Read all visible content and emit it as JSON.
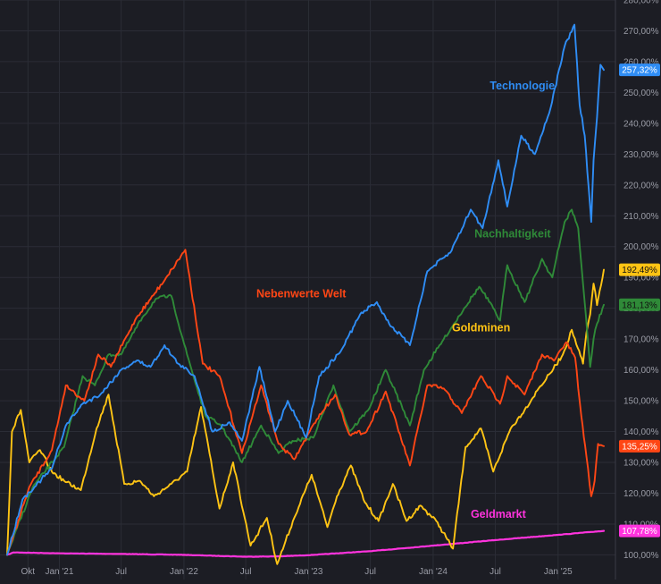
{
  "chart_data": {
    "type": "line",
    "title": "",
    "xlabel": "",
    "ylabel": "",
    "x_range": [
      "2020-08-01",
      "2025-05-15"
    ],
    "ylim": [
      92,
      280
    ],
    "y_unit": "%",
    "grid": true,
    "background": "#1c1d24",
    "grid_color": "#2b2d36",
    "x_ticks": [
      {
        "label": "Okt",
        "date": "2020-10-01"
      },
      {
        "label": "Jan '21",
        "date": "2021-01-01"
      },
      {
        "label": "Jul",
        "date": "2021-07-01"
      },
      {
        "label": "Jan '22",
        "date": "2022-01-01"
      },
      {
        "label": "Jul",
        "date": "2022-07-01"
      },
      {
        "label": "Jan '23",
        "date": "2023-01-01"
      },
      {
        "label": "Jul",
        "date": "2023-07-01"
      },
      {
        "label": "Jan '24",
        "date": "2024-01-01"
      },
      {
        "label": "Jul",
        "date": "2024-07-01"
      },
      {
        "label": "Jan '25",
        "date": "2025-01-01"
      }
    ],
    "y_ticks": [
      {
        "label": "100,00%",
        "value": 100
      },
      {
        "label": "110,00%",
        "value": 110
      },
      {
        "label": "120,00%",
        "value": 120
      },
      {
        "label": "130,00%",
        "value": 130
      },
      {
        "label": "140,00%",
        "value": 140
      },
      {
        "label": "150,00%",
        "value": 150
      },
      {
        "label": "160,00%",
        "value": 160
      },
      {
        "label": "170,00%",
        "value": 170
      },
      {
        "label": "180,00%",
        "value": 180
      },
      {
        "label": "190,00%",
        "value": 190
      },
      {
        "label": "200,00%",
        "value": 200
      },
      {
        "label": "210,00%",
        "value": 210
      },
      {
        "label": "220,00%",
        "value": 220
      },
      {
        "label": "230,00%",
        "value": 230
      },
      {
        "label": "240,00%",
        "value": 240
      },
      {
        "label": "250,00%",
        "value": 250
      },
      {
        "label": "260,00%",
        "value": 260
      },
      {
        "label": "270,00%",
        "value": 270
      },
      {
        "label": "280,00%",
        "value": 280
      }
    ],
    "series": [
      {
        "name": "Geldmarkt",
        "color": "#ff33dd",
        "last_value_label": "107,78%",
        "badge_text_color": "#ffffff",
        "label_anchor": [
          "2024-04-20",
          112
        ],
        "x": [
          "2020-08-01",
          "2020-08-20",
          "2021-01-01",
          "2021-07-01",
          "2022-01-01",
          "2022-07-01",
          "2022-10-01",
          "2023-01-01",
          "2023-07-01",
          "2024-01-01",
          "2024-07-01",
          "2025-01-01",
          "2025-05-15"
        ],
        "y": [
          100,
          100.8,
          100.5,
          100.3,
          100,
          99.4,
          99.5,
          99.9,
          101.2,
          103,
          104.8,
          106.5,
          107.78
        ]
      },
      {
        "name": "Goldminen",
        "color": "#ffc414",
        "last_value_label": "192,49%",
        "badge_text_color": "#111111",
        "label_anchor": [
          "2024-02-25",
          172.5
        ],
        "x": [
          "2020-08-01",
          "2020-08-15",
          "2020-09-10",
          "2020-10-05",
          "2020-11-05",
          "2020-12-10",
          "2021-01-15",
          "2021-03-05",
          "2021-04-20",
          "2021-05-25",
          "2021-07-10",
          "2021-08-25",
          "2021-10-05",
          "2021-11-25",
          "2022-01-10",
          "2022-02-20",
          "2022-04-15",
          "2022-05-25",
          "2022-07-15",
          "2022-09-01",
          "2022-10-01",
          "2022-11-20",
          "2023-01-10",
          "2023-02-25",
          "2023-03-25",
          "2023-05-05",
          "2023-06-15",
          "2023-07-25",
          "2023-09-05",
          "2023-10-15",
          "2023-11-25",
          "2024-01-10",
          "2024-02-28",
          "2024-04-05",
          "2024-05-20",
          "2024-06-25",
          "2024-08-15",
          "2024-09-25",
          "2024-11-05",
          "2024-12-10",
          "2025-01-15",
          "2025-02-10",
          "2025-02-28",
          "2025-03-15",
          "2025-03-25",
          "2025-04-05",
          "2025-04-15",
          "2025-04-25",
          "2025-05-15"
        ],
        "y": [
          100,
          140,
          147,
          130,
          134,
          127,
          124,
          121,
          141,
          152,
          123,
          124,
          119,
          123,
          127,
          148,
          115,
          130,
          103,
          112,
          97,
          112,
          126,
          109,
          119,
          129,
          117,
          111,
          123,
          111,
          116,
          111,
          102,
          135,
          141,
          127,
          141,
          147,
          154,
          159,
          165,
          173,
          167,
          162,
          172,
          178,
          188,
          181,
          192.49
        ]
      },
      {
        "name": "Nachhaltigkeit",
        "color": "#2f8a38",
        "last_value_label": "181,13%",
        "badge_text_color": "#111111",
        "label_anchor": [
          "2024-05-01",
          203
        ],
        "x": [
          "2020-08-01",
          "2020-10-15",
          "2021-01-15",
          "2021-03-10",
          "2021-04-15",
          "2021-05-25",
          "2021-07-01",
          "2021-09-01",
          "2021-10-10",
          "2021-11-25",
          "2022-01-10",
          "2022-03-05",
          "2022-04-20",
          "2022-06-20",
          "2022-08-15",
          "2022-10-05",
          "2022-11-15",
          "2023-01-15",
          "2023-03-15",
          "2023-05-01",
          "2023-06-25",
          "2023-08-15",
          "2023-10-25",
          "2023-12-05",
          "2024-02-01",
          "2024-04-01",
          "2024-05-15",
          "2024-06-25",
          "2024-07-15",
          "2024-08-05",
          "2024-09-25",
          "2024-11-15",
          "2024-12-15",
          "2025-01-20",
          "2025-02-10",
          "2025-03-01",
          "2025-03-15",
          "2025-04-05",
          "2025-04-15",
          "2025-04-25",
          "2025-05-15"
        ],
        "y": [
          100,
          122,
          135,
          158,
          155,
          165,
          165,
          177,
          183,
          184,
          165,
          145,
          142,
          130,
          142,
          133,
          137,
          138,
          155,
          140,
          147,
          160,
          142,
          160,
          170,
          180,
          187,
          180,
          176,
          194,
          182,
          196,
          190,
          208,
          212,
          206,
          188,
          161,
          170,
          175,
          181.13
        ]
      },
      {
        "name": "Nebenwerte Welt",
        "color": "#ff4615",
        "last_value_label": "135,25%",
        "badge_text_color": "#ffffff",
        "label_anchor": [
          "2022-08-01",
          183.5
        ],
        "x": [
          "2020-08-01",
          "2020-10-05",
          "2020-12-10",
          "2021-01-20",
          "2021-03-15",
          "2021-04-25",
          "2021-06-01",
          "2021-08-15",
          "2021-09-25",
          "2021-11-10",
          "2022-01-05",
          "2022-02-25",
          "2022-04-15",
          "2022-06-20",
          "2022-08-15",
          "2022-10-05",
          "2022-11-20",
          "2023-01-25",
          "2023-03-20",
          "2023-05-01",
          "2023-06-20",
          "2023-08-15",
          "2023-10-25",
          "2023-12-15",
          "2024-02-01",
          "2024-03-25",
          "2024-05-20",
          "2024-07-15",
          "2024-08-05",
          "2024-09-25",
          "2024-11-15",
          "2024-12-20",
          "2025-01-25",
          "2025-02-20",
          "2025-03-10",
          "2025-03-25",
          "2025-04-08",
          "2025-04-18",
          "2025-04-28",
          "2025-05-15"
        ],
        "y": [
          100,
          122,
          134,
          155,
          150,
          165,
          161,
          177,
          183,
          190,
          199,
          162,
          158,
          133,
          155,
          136,
          131,
          144,
          152,
          139,
          140,
          153,
          129,
          155,
          154,
          146,
          158,
          149,
          158,
          152,
          165,
          163,
          169,
          164,
          145,
          132,
          119,
          124,
          136,
          135.25
        ]
      },
      {
        "name": "Technologie",
        "color": "#2f8df5",
        "last_value_label": "257,32%",
        "badge_text_color": "#ffffff",
        "label_anchor": [
          "2024-06-15",
          251
        ],
        "x": [
          "2020-08-01",
          "2020-09-15",
          "2020-10-20",
          "2020-12-10",
          "2021-01-20",
          "2021-03-10",
          "2021-05-01",
          "2021-07-01",
          "2021-08-15",
          "2021-09-25",
          "2021-11-05",
          "2021-12-15",
          "2022-02-01",
          "2022-03-25",
          "2022-05-15",
          "2022-06-20",
          "2022-08-10",
          "2022-09-25",
          "2022-11-01",
          "2022-12-25",
          "2023-02-01",
          "2023-04-05",
          "2023-06-01",
          "2023-07-20",
          "2023-08-25",
          "2023-10-25",
          "2023-12-15",
          "2024-02-20",
          "2024-04-20",
          "2024-05-25",
          "2024-07-10",
          "2024-08-05",
          "2024-09-15",
          "2024-10-25",
          "2024-12-10",
          "2025-01-20",
          "2025-02-18",
          "2025-03-05",
          "2025-03-20",
          "2025-04-08",
          "2025-04-15",
          "2025-04-25",
          "2025-05-05",
          "2025-05-15"
        ],
        "y": [
          100,
          118,
          122,
          128,
          142,
          149,
          152,
          160,
          163,
          161,
          168,
          162,
          158,
          140,
          143,
          137,
          161,
          140,
          150,
          138,
          158,
          166,
          178,
          182,
          175,
          168,
          192,
          198,
          212,
          206,
          228,
          213,
          236,
          230,
          245,
          265,
          272,
          246,
          236,
          208,
          228,
          242,
          259,
          257.32
        ]
      }
    ]
  }
}
